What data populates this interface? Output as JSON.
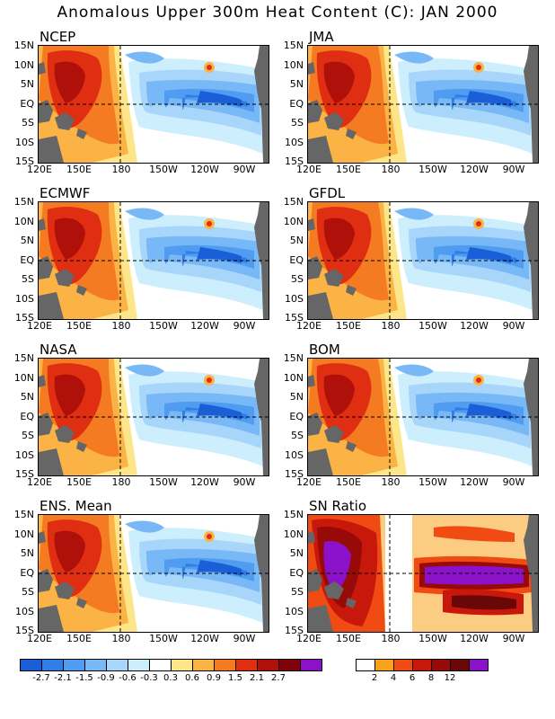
{
  "title": "Anomalous Upper 300m Heat Content (C): JAN 2000",
  "lat_ticks": [
    "15N",
    "10N",
    "5N",
    "EQ",
    "5S",
    "10S",
    "15S"
  ],
  "lon_ticks": [
    "120E",
    "150E",
    "180",
    "150W",
    "120W",
    "90W"
  ],
  "panels": [
    {
      "name": "NCEP"
    },
    {
      "name": "JMA"
    },
    {
      "name": "ECMWF"
    },
    {
      "name": "GFDL"
    },
    {
      "name": "NASA"
    },
    {
      "name": "BOM"
    },
    {
      "name": "ENS. Mean"
    },
    {
      "name": "SN Ratio"
    }
  ],
  "anomaly_colorbar": {
    "labels": [
      "-2.7",
      "-2.1",
      "-1.5",
      "-0.9",
      "-0.6",
      "-0.3",
      "0.3",
      "0.6",
      "0.9",
      "1.5",
      "2.1",
      "2.7"
    ],
    "colors": [
      "#1a5fd8",
      "#2f7ee6",
      "#4f9cf0",
      "#78b8f6",
      "#a8d6fb",
      "#cdeefd",
      "#ffffff",
      "#fde68a",
      "#fbb346",
      "#f57b23",
      "#e02e12",
      "#b0100a",
      "#7e0208",
      "#8b12c8"
    ]
  },
  "sn_colorbar": {
    "labels": [
      "2",
      "4",
      "6",
      "8",
      "12"
    ],
    "colors": [
      "#ffffff",
      "#f9a21c",
      "#ef4b12",
      "#c8180b",
      "#970a08",
      "#6a0707",
      "#8b12c8"
    ]
  },
  "land_color": "#666666"
}
